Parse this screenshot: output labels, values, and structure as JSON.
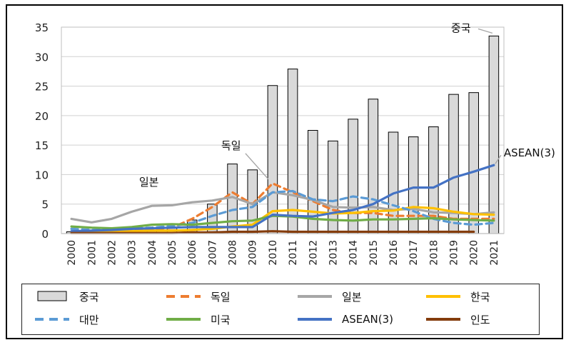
{
  "chart_data": {
    "type": "bar",
    "title": "",
    "xlabel": "",
    "ylabel": "",
    "ylim": [
      0,
      35
    ],
    "yticks": [
      0,
      5,
      10,
      15,
      20,
      25,
      30,
      35
    ],
    "grid": true,
    "legend_position": "bottom",
    "categories": [
      "2000",
      "2001",
      "2002",
      "2003",
      "2004",
      "2005",
      "2006",
      "2007",
      "2008",
      "2009",
      "2010",
      "2011",
      "2012",
      "2013",
      "2014",
      "2015",
      "2016",
      "2017",
      "2018",
      "2019",
      "2020",
      "2021"
    ],
    "series": [
      {
        "name": "중국",
        "kind": "bar",
        "color": "#d9d9d9",
        "stroke": "#000000",
        "values": [
          0.3,
          0.3,
          0.4,
          0.5,
          0.6,
          0.9,
          2.3,
          5.0,
          11.8,
          10.8,
          25.1,
          27.9,
          17.5,
          15.7,
          19.4,
          22.8,
          17.2,
          16.4,
          18.1,
          23.6,
          23.9,
          33.5
        ]
      },
      {
        "name": "독일",
        "kind": "line",
        "dash": "dashed",
        "color": "#ed7d31",
        "values": [
          0.2,
          0.3,
          0.4,
          0.5,
          0.7,
          1.0,
          2.5,
          4.5,
          7.0,
          5.0,
          8.5,
          7.0,
          5.5,
          4.0,
          3.5,
          3.5,
          3.0,
          3.0,
          3.0,
          2.5,
          2.5,
          2.5
        ]
      },
      {
        "name": "일본",
        "kind": "line",
        "dash": "solid",
        "color": "#a6a6a6",
        "values": [
          2.5,
          1.9,
          2.5,
          3.7,
          4.7,
          4.8,
          5.3,
          5.6,
          6.2,
          5.0,
          7.0,
          6.5,
          5.7,
          4.5,
          4.4,
          4.5,
          4.0,
          4.2,
          3.6,
          3.5,
          3.3,
          3.6
        ]
      },
      {
        "name": "한국",
        "kind": "line",
        "dash": "solid",
        "color": "#ffc000",
        "values": [
          0.3,
          0.3,
          0.3,
          0.4,
          0.5,
          0.5,
          0.6,
          0.8,
          1.2,
          1.5,
          3.8,
          4.0,
          3.7,
          3.4,
          3.5,
          3.8,
          3.9,
          4.5,
          4.3,
          3.7,
          3.3,
          3.2
        ]
      },
      {
        "name": "대만",
        "kind": "line",
        "dash": "dashed",
        "color": "#5b9bd5",
        "values": [
          0.8,
          0.6,
          0.7,
          0.9,
          1.0,
          1.3,
          1.8,
          3.0,
          4.0,
          4.5,
          7.0,
          7.2,
          5.8,
          5.5,
          6.3,
          5.8,
          4.8,
          3.8,
          2.5,
          1.8,
          1.5,
          1.8
        ]
      },
      {
        "name": "미국",
        "kind": "line",
        "dash": "solid",
        "color": "#70ad47",
        "values": [
          1.2,
          1.0,
          0.9,
          1.1,
          1.5,
          1.6,
          1.5,
          1.8,
          2.1,
          2.2,
          3.0,
          2.9,
          2.5,
          2.3,
          2.2,
          2.4,
          2.4,
          2.5,
          2.6,
          2.4,
          2.3,
          2.2
        ]
      },
      {
        "name": "ASEAN(3)",
        "kind": "line",
        "dash": "solid",
        "color": "#4472c4",
        "values": [
          0.4,
          0.5,
          0.6,
          0.8,
          0.9,
          1.0,
          1.1,
          1.1,
          1.1,
          1.1,
          3.2,
          3.0,
          2.9,
          3.5,
          4.0,
          5.0,
          6.8,
          7.8,
          7.8,
          9.5,
          10.5,
          11.6
        ]
      },
      {
        "name": "인도",
        "kind": "line",
        "dash": "solid",
        "color": "#843c0c",
        "values": [
          0.1,
          0.1,
          0.1,
          0.1,
          0.1,
          0.1,
          0.2,
          0.2,
          0.3,
          0.3,
          0.4,
          0.3,
          0.3,
          0.3,
          0.3,
          0.3,
          0.3,
          0.3,
          0.3,
          0.3,
          0.3,
          null
        ]
      }
    ],
    "annotations": [
      {
        "text": "중국",
        "x": "2021",
        "y": 33.5
      },
      {
        "text": "ASEAN(3)",
        "x": "2021",
        "y": 11.6
      },
      {
        "text": "독일",
        "x": "2010",
        "y": 8.5
      },
      {
        "text": "일본",
        "x": "2004",
        "y": 4.7
      }
    ]
  }
}
